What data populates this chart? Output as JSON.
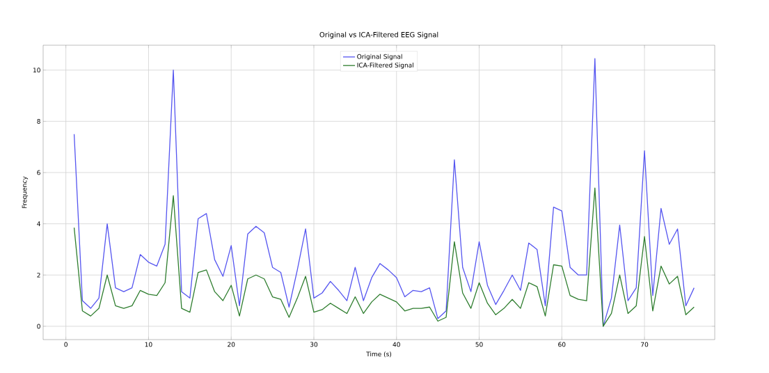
{
  "chart_data": {
    "type": "line",
    "title": "Original vs ICA-Filtered EEG Signal",
    "xlabel": "Time (s)",
    "ylabel": "Frequency",
    "x": [
      1,
      2,
      3,
      4,
      5,
      6,
      7,
      8,
      9,
      10,
      11,
      12,
      13,
      14,
      15,
      16,
      17,
      18,
      19,
      20,
      21,
      22,
      23,
      24,
      25,
      26,
      27,
      28,
      29,
      30,
      31,
      32,
      33,
      34,
      35,
      36,
      37,
      38,
      39,
      40,
      41,
      42,
      43,
      44,
      45,
      46,
      47,
      48,
      49,
      50,
      51,
      52,
      53,
      54,
      55,
      56,
      57,
      58,
      59,
      60,
      61,
      62,
      63,
      64,
      65,
      66,
      67,
      68,
      69,
      70,
      71,
      72,
      73,
      74,
      75,
      76
    ],
    "series": [
      {
        "name": "Original Signal",
        "color": "#5555f0",
        "values": [
          7.5,
          1.0,
          0.7,
          1.1,
          4.0,
          1.5,
          1.35,
          1.5,
          2.8,
          2.5,
          2.35,
          3.2,
          10.0,
          1.35,
          1.1,
          4.2,
          4.4,
          2.6,
          1.95,
          3.15,
          0.8,
          3.6,
          3.9,
          3.65,
          2.3,
          2.1,
          0.75,
          2.2,
          3.8,
          1.1,
          1.3,
          1.75,
          1.4,
          1.0,
          2.3,
          1.0,
          1.9,
          2.45,
          2.2,
          1.9,
          1.15,
          1.4,
          1.35,
          1.5,
          0.3,
          0.6,
          6.5,
          2.3,
          1.35,
          3.3,
          1.6,
          0.85,
          1.4,
          2.0,
          1.4,
          3.25,
          3.0,
          0.8,
          4.65,
          4.5,
          2.3,
          2.0,
          2.0,
          10.45,
          0.0,
          1.1,
          3.95,
          1.0,
          1.5,
          6.85,
          1.2,
          4.6,
          3.2,
          3.8,
          0.8,
          1.5
        ]
      },
      {
        "name": "ICA-Filtered Signal",
        "color": "#2e7d2e",
        "values": [
          3.85,
          0.6,
          0.4,
          0.7,
          2.0,
          0.8,
          0.7,
          0.8,
          1.4,
          1.25,
          1.2,
          1.7,
          5.1,
          0.7,
          0.55,
          2.1,
          2.2,
          1.35,
          1.0,
          1.6,
          0.4,
          1.85,
          2.0,
          1.85,
          1.15,
          1.05,
          0.35,
          1.1,
          1.95,
          0.55,
          0.65,
          0.9,
          0.7,
          0.5,
          1.15,
          0.5,
          0.95,
          1.25,
          1.1,
          0.95,
          0.6,
          0.7,
          0.7,
          0.75,
          0.2,
          0.35,
          3.3,
          1.3,
          0.7,
          1.7,
          0.9,
          0.45,
          0.7,
          1.05,
          0.7,
          1.7,
          1.55,
          0.4,
          2.4,
          2.35,
          1.2,
          1.05,
          1.0,
          5.4,
          0.0,
          0.5,
          2.0,
          0.5,
          0.8,
          3.5,
          0.6,
          2.35,
          1.65,
          1.95,
          0.45,
          0.75
        ]
      }
    ],
    "xlim": [
      -2.75,
      78.5
    ],
    "ylim": [
      -0.52,
      10.97
    ],
    "xticks": [
      0,
      10,
      20,
      30,
      40,
      50,
      60,
      70
    ],
    "yticks": [
      0,
      2,
      4,
      6,
      8,
      10
    ],
    "grid": true,
    "legend": "top",
    "line_style": "solid",
    "marker": "none"
  }
}
